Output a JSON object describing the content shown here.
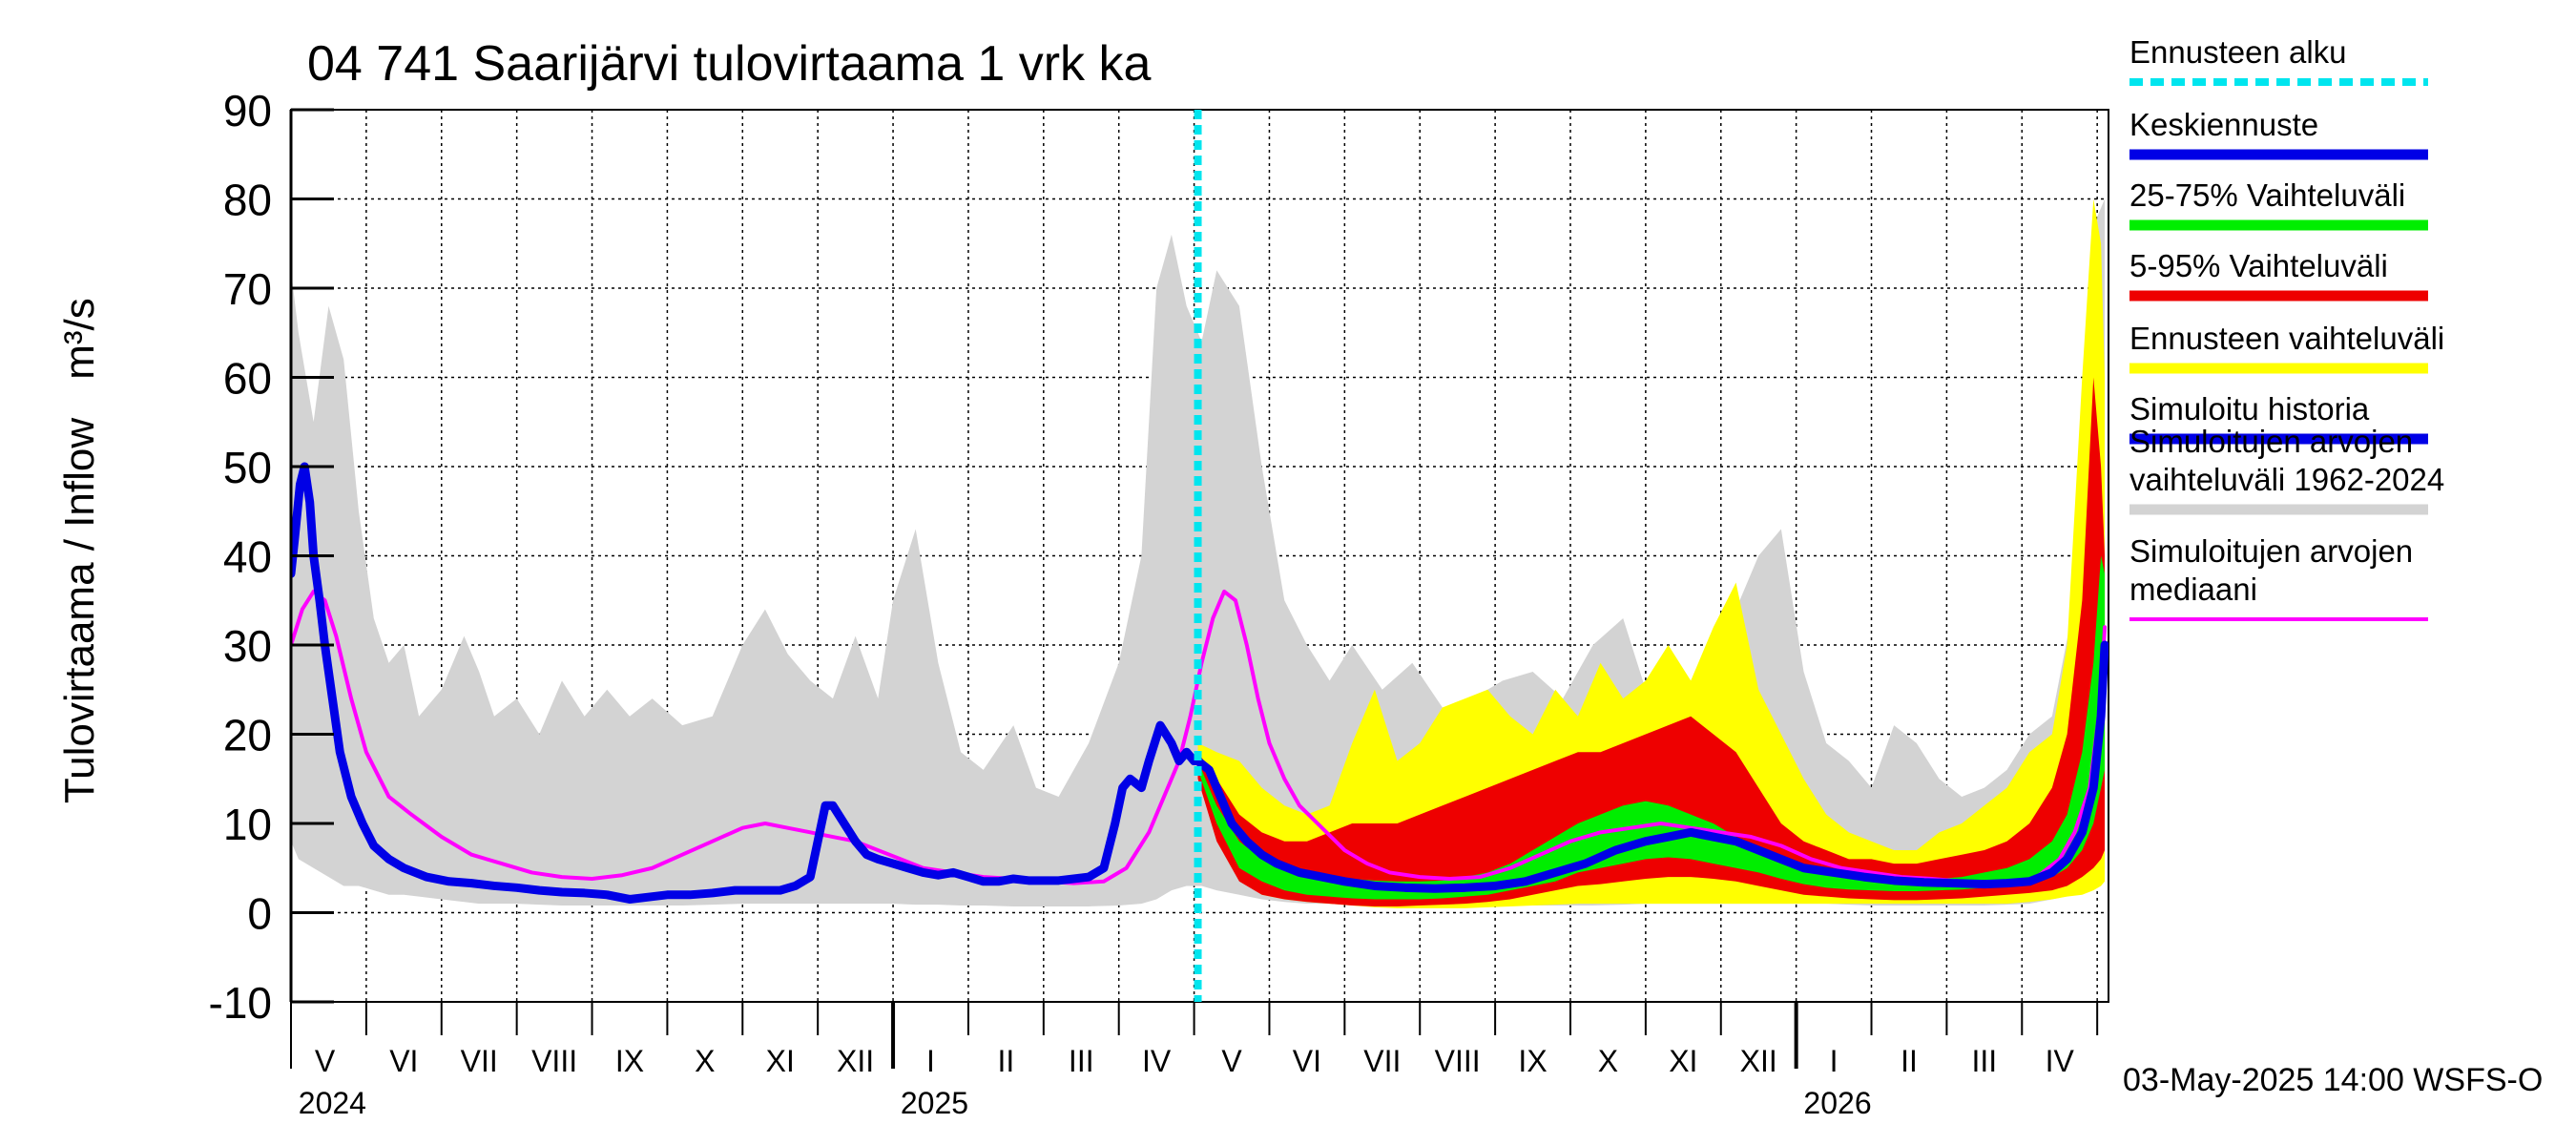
{
  "title": "04 741 Saarijärvi tulovirtaama 1 vrk ka",
  "ylabel": "Tulovirtaama / Inflow",
  "yunit": "m³/s",
  "footer": "03-May-2025 14:00 WSFS-O",
  "colors": {
    "forecast_start": "#00e5ee",
    "mean_forecast": "#0000e6",
    "iqr": "#00ee00",
    "p5_95": "#ee0000",
    "forecast_range": "#ffff00",
    "sim_history": "#0000e6",
    "hist_range": "#d3d3d3",
    "hist_median": "#ff00ff"
  },
  "legend": [
    {
      "label": "Ennusteen alku",
      "key": "forecast_start",
      "style": "dashed"
    },
    {
      "label": "Keskiennuste",
      "key": "mean_forecast",
      "style": "line"
    },
    {
      "label": "25-75% Vaihteluväli",
      "key": "iqr",
      "style": "band"
    },
    {
      "label": "5-95% Vaihteluväli",
      "key": "p5_95",
      "style": "band"
    },
    {
      "label": "Ennusteen vaihteluväli",
      "key": "forecast_range",
      "style": "band"
    },
    {
      "label": "Simuloitu historia",
      "key": "sim_history",
      "style": "line"
    },
    {
      "label": "Simuloitujen arvojen\nvaihteluväli 1962-2024",
      "key": "hist_range",
      "style": "band"
    },
    {
      "label": "Simuloitujen arvojen\nmediaani",
      "key": "hist_median",
      "style": "thin"
    }
  ],
  "chart_data": {
    "type": "area",
    "x_unit": "months since 2024-04-26",
    "xlim": [
      0,
      24.15
    ],
    "ylim": [
      -10,
      90
    ],
    "yticks": [
      -10,
      0,
      10,
      20,
      30,
      40,
      50,
      60,
      70,
      80,
      90
    ],
    "forecast_start_x": 12.05,
    "month_ticks": [
      1,
      2,
      3,
      4,
      5,
      6,
      7,
      8,
      9,
      10,
      11,
      12,
      13,
      14,
      15,
      16,
      17,
      18,
      19,
      20,
      21,
      22,
      23,
      24
    ],
    "year_ticks": [
      8,
      20
    ],
    "month_labels": [
      {
        "label": "V",
        "x": 0.45
      },
      {
        "label": "VI",
        "x": 1.5
      },
      {
        "label": "VII",
        "x": 2.5
      },
      {
        "label": "VIII",
        "x": 3.5
      },
      {
        "label": "IX",
        "x": 4.5
      },
      {
        "label": "X",
        "x": 5.5
      },
      {
        "label": "XI",
        "x": 6.5
      },
      {
        "label": "XII",
        "x": 7.5
      },
      {
        "label": "I",
        "x": 8.5
      },
      {
        "label": "II",
        "x": 9.5
      },
      {
        "label": "III",
        "x": 10.5
      },
      {
        "label": "IV",
        "x": 11.5
      },
      {
        "label": "V",
        "x": 12.5
      },
      {
        "label": "VI",
        "x": 13.5
      },
      {
        "label": "VII",
        "x": 14.5
      },
      {
        "label": "VIII",
        "x": 15.5
      },
      {
        "label": "IX",
        "x": 16.5
      },
      {
        "label": "X",
        "x": 17.5
      },
      {
        "label": "XI",
        "x": 18.5
      },
      {
        "label": "XII",
        "x": 19.5
      },
      {
        "label": "I",
        "x": 20.5
      },
      {
        "label": "II",
        "x": 21.5
      },
      {
        "label": "III",
        "x": 22.5
      },
      {
        "label": "IV",
        "x": 23.5
      }
    ],
    "year_labels": [
      {
        "label": "2024",
        "x": 0.55
      },
      {
        "label": "2025",
        "x": 8.55
      },
      {
        "label": "2026",
        "x": 20.55
      }
    ],
    "series": [
      {
        "name": "Simuloitujen arvojen vaihteluväli 1962-2024",
        "key": "hist_range",
        "kind": "band",
        "x": [
          0,
          0.1,
          0.3,
          0.5,
          0.7,
          0.9,
          1.1,
          1.3,
          1.5,
          1.7,
          2.0,
          2.3,
          2.5,
          2.7,
          3.0,
          3.3,
          3.6,
          3.9,
          4.2,
          4.5,
          4.8,
          5.2,
          5.6,
          6.0,
          6.3,
          6.6,
          6.9,
          7.2,
          7.5,
          7.8,
          8.0,
          8.3,
          8.6,
          8.9,
          9.2,
          9.6,
          9.9,
          10.2,
          10.6,
          11.0,
          11.3,
          11.5,
          11.7,
          11.9,
          12.1,
          12.3,
          12.6,
          12.9,
          13.2,
          13.5,
          13.8,
          14.1,
          14.5,
          14.9,
          15.3,
          15.7,
          16.1,
          16.5,
          16.9,
          17.3,
          17.7,
          18.0,
          18.3,
          18.6,
          18.9,
          19.2,
          19.5,
          19.8,
          20.1,
          20.4,
          20.7,
          21.0,
          21.3,
          21.6,
          21.9,
          22.2,
          22.5,
          22.8,
          23.1,
          23.4,
          23.7,
          23.9,
          24.0,
          24.1
        ],
        "upper": [
          72,
          65,
          55,
          68,
          62,
          45,
          33,
          28,
          30,
          22,
          25,
          31,
          27,
          22,
          24,
          20,
          26,
          22,
          25,
          22,
          24,
          21,
          22,
          30,
          34,
          29,
          26,
          24,
          31,
          24,
          35,
          43,
          28,
          18,
          16,
          21,
          14,
          13,
          19,
          28,
          40,
          70,
          76,
          68,
          64,
          72,
          68,
          50,
          35,
          30,
          26,
          30,
          25,
          28,
          23,
          24,
          26,
          27,
          24,
          30,
          33,
          25,
          28,
          26,
          30,
          34,
          40,
          43,
          27,
          19,
          17,
          14,
          21,
          19,
          15,
          13,
          14,
          16,
          20,
          22,
          35,
          56,
          78,
          80
        ],
        "lower": [
          8,
          6,
          5,
          4,
          3,
          3,
          2.5,
          2,
          2,
          1.8,
          1.5,
          1.2,
          1,
          1,
          1,
          0.9,
          0.8,
          0.8,
          0.8,
          0.8,
          0.8,
          0.8,
          0.9,
          1,
          1,
          1,
          1,
          1,
          1,
          1,
          1,
          0.9,
          0.9,
          0.8,
          0.8,
          0.7,
          0.7,
          0.7,
          0.7,
          0.8,
          1,
          1.5,
          2.5,
          3,
          3,
          2.5,
          2,
          1.5,
          1.2,
          1,
          1,
          0.9,
          0.8,
          0.8,
          0.8,
          0.8,
          0.8,
          0.8,
          0.8,
          0.8,
          0.9,
          1,
          1,
          1,
          1,
          1,
          1,
          1,
          1,
          1,
          0.9,
          0.8,
          0.8,
          0.8,
          0.8,
          0.8,
          0.8,
          0.9,
          1,
          1.5,
          2,
          3,
          4,
          5
        ]
      },
      {
        "name": "Ennusteen vaihteluväli",
        "key": "forecast_range",
        "kind": "band",
        "x": [
          12.05,
          12.3,
          12.6,
          12.9,
          13.2,
          13.5,
          13.8,
          14.1,
          14.4,
          14.7,
          15.0,
          15.3,
          15.6,
          15.9,
          16.2,
          16.5,
          16.8,
          17.1,
          17.4,
          17.7,
          18.0,
          18.3,
          18.6,
          18.9,
          19.2,
          19.5,
          19.8,
          20.1,
          20.4,
          20.7,
          21.0,
          21.3,
          21.6,
          21.9,
          22.2,
          22.5,
          22.8,
          23.1,
          23.4,
          23.6,
          23.8,
          23.95,
          24.05,
          24.1
        ],
        "upper": [
          19,
          18,
          17,
          14,
          12,
          11,
          12,
          19,
          25,
          17,
          19,
          23,
          24,
          25,
          22,
          20,
          25,
          22,
          28,
          24,
          26,
          30,
          26,
          32,
          37,
          25,
          20,
          15,
          11,
          9,
          8,
          7,
          7,
          9,
          10,
          12,
          14,
          18,
          20,
          30,
          60,
          80,
          75,
          60
        ],
        "lower": [
          15,
          10,
          4,
          2,
          1.5,
          1.2,
          1,
          0.8,
          0.6,
          0.5,
          0.5,
          0.5,
          0.5,
          0.6,
          0.7,
          0.8,
          0.9,
          1,
          1,
          1,
          1,
          1,
          1,
          1,
          1,
          1,
          1,
          1,
          1,
          1,
          1,
          1,
          1,
          1,
          1,
          1,
          1,
          1.2,
          1.5,
          1.8,
          2,
          2.5,
          3,
          3.5
        ]
      },
      {
        "name": "5-95% Vaihteluväli",
        "key": "p5_95",
        "kind": "band",
        "x": [
          12.05,
          12.3,
          12.6,
          12.9,
          13.2,
          13.5,
          13.8,
          14.1,
          14.4,
          14.7,
          15.0,
          15.3,
          15.6,
          15.9,
          16.2,
          16.5,
          16.8,
          17.1,
          17.4,
          17.7,
          18.0,
          18.3,
          18.6,
          18.9,
          19.2,
          19.5,
          19.8,
          20.1,
          20.4,
          20.7,
          21.0,
          21.3,
          21.6,
          21.9,
          22.2,
          22.5,
          22.8,
          23.1,
          23.4,
          23.6,
          23.8,
          23.95,
          24.05,
          24.1
        ],
        "upper": [
          18,
          15,
          11,
          9,
          8,
          8,
          9,
          10,
          10,
          10,
          11,
          12,
          13,
          14,
          15,
          16,
          17,
          18,
          18,
          19,
          20,
          21,
          22,
          20,
          18,
          14,
          10,
          8,
          7,
          6,
          6,
          5.5,
          5.5,
          6,
          6.5,
          7,
          8,
          10,
          14,
          20,
          35,
          60,
          50,
          40
        ],
        "lower": [
          15,
          8,
          3.5,
          2,
          1.5,
          1.2,
          1,
          0.8,
          0.7,
          0.7,
          0.8,
          0.9,
          1,
          1.2,
          1.5,
          2,
          2.5,
          3,
          3.2,
          3.5,
          3.8,
          4,
          4,
          3.8,
          3.5,
          3,
          2.5,
          2,
          1.8,
          1.6,
          1.5,
          1.4,
          1.4,
          1.5,
          1.6,
          1.8,
          2,
          2.2,
          2.5,
          3,
          4,
          5,
          6,
          7
        ]
      },
      {
        "name": "25-75% Vaihteluväli",
        "key": "iqr",
        "kind": "band",
        "x": [
          12.05,
          12.3,
          12.6,
          12.9,
          13.2,
          13.5,
          13.8,
          14.1,
          14.4,
          14.7,
          15.0,
          15.3,
          15.6,
          15.9,
          16.2,
          16.5,
          16.8,
          17.1,
          17.4,
          17.7,
          18.0,
          18.3,
          18.6,
          18.9,
          19.2,
          19.5,
          19.8,
          20.1,
          20.4,
          20.7,
          21.0,
          21.3,
          21.6,
          21.9,
          22.2,
          22.5,
          22.8,
          23.1,
          23.4,
          23.6,
          23.8,
          23.95,
          24.05,
          24.1
        ],
        "upper": [
          17,
          12,
          8,
          6,
          5,
          4.5,
          4,
          3.8,
          3.6,
          3.5,
          3.5,
          3.6,
          4,
          4.5,
          5.5,
          7,
          8.5,
          10,
          11,
          12,
          12.5,
          12,
          11,
          10,
          8.5,
          7,
          6,
          5,
          4.5,
          4.2,
          4,
          3.8,
          3.7,
          3.8,
          4,
          4.5,
          5,
          6,
          8,
          11,
          18,
          28,
          40,
          38
        ],
        "lower": [
          16,
          10,
          5,
          3.5,
          2.5,
          2,
          1.8,
          1.6,
          1.5,
          1.5,
          1.5,
          1.6,
          1.8,
          2,
          2.5,
          3,
          3.5,
          4.5,
          5,
          5.5,
          6,
          6.2,
          6,
          5.5,
          5,
          4.5,
          3.8,
          3.2,
          2.8,
          2.6,
          2.5,
          2.4,
          2.4,
          2.5,
          2.6,
          2.8,
          3,
          3.5,
          4,
          5,
          7,
          10,
          14,
          16
        ]
      },
      {
        "name": "Simuloitujen arvojen mediaani",
        "key": "hist_median",
        "kind": "line",
        "x": [
          0,
          0.15,
          0.3,
          0.45,
          0.6,
          0.8,
          1.0,
          1.3,
          1.6,
          2.0,
          2.4,
          2.8,
          3.2,
          3.6,
          4.0,
          4.4,
          4.8,
          5.2,
          5.6,
          6.0,
          6.3,
          6.6,
          6.9,
          7.2,
          7.5,
          7.8,
          8.1,
          8.4,
          8.8,
          9.2,
          9.6,
          10.0,
          10.4,
          10.8,
          11.1,
          11.4,
          11.6,
          11.8,
          11.95,
          12.1,
          12.25,
          12.4,
          12.55,
          12.7,
          12.85,
          13.0,
          13.2,
          13.4,
          13.7,
          14.0,
          14.3,
          14.6,
          15.0,
          15.4,
          15.8,
          16.2,
          16.6,
          17.0,
          17.4,
          17.8,
          18.2,
          18.6,
          19.0,
          19.4,
          19.8,
          20.2,
          20.6,
          21.0,
          21.4,
          21.8,
          22.2,
          22.6,
          22.9,
          23.2,
          23.5,
          23.7,
          23.9,
          24.05,
          24.1
        ],
        "values": [
          30,
          34,
          36,
          35,
          31,
          24,
          18,
          13,
          11,
          8.5,
          6.5,
          5.5,
          4.5,
          4,
          3.8,
          4.2,
          5,
          6.5,
          8,
          9.5,
          10,
          9.5,
          9,
          8.5,
          8,
          7,
          6,
          5,
          4.5,
          4,
          3.8,
          3.5,
          3.3,
          3.5,
          5,
          9,
          13,
          17,
          22,
          28,
          33,
          36,
          35,
          30,
          24,
          19,
          15,
          12,
          9.5,
          7,
          5.5,
          4.5,
          4,
          3.8,
          4,
          5,
          6.5,
          8,
          9,
          9.5,
          10,
          9.5,
          9,
          8.5,
          7.5,
          6,
          5,
          4.5,
          4,
          3.8,
          3.5,
          3.3,
          3.3,
          4,
          6,
          9,
          14,
          24,
          32
        ]
      },
      {
        "name": "Simuloitu historia",
        "key": "sim_history",
        "kind": "line",
        "x": [
          0,
          0.05,
          0.12,
          0.18,
          0.25,
          0.3,
          0.38,
          0.45,
          0.55,
          0.65,
          0.8,
          0.95,
          1.1,
          1.3,
          1.5,
          1.8,
          2.1,
          2.4,
          2.7,
          3.0,
          3.3,
          3.6,
          3.9,
          4.2,
          4.5,
          4.8,
          5.0,
          5.3,
          5.6,
          5.9,
          6.2,
          6.5,
          6.7,
          6.9,
          7.0,
          7.1,
          7.2,
          7.35,
          7.5,
          7.65,
          7.8,
          8.0,
          8.2,
          8.4,
          8.6,
          8.8,
          9.0,
          9.2,
          9.4,
          9.6,
          9.8,
          10.0,
          10.2,
          10.4,
          10.6,
          10.8,
          10.95,
          11.05,
          11.15,
          11.3,
          11.4,
          11.55,
          11.7,
          11.8,
          11.9,
          12.0,
          12.05
        ],
        "values": [
          38,
          42,
          48,
          50,
          46,
          40,
          35,
          30,
          24,
          18,
          13,
          10,
          7.5,
          6,
          5,
          4,
          3.5,
          3.3,
          3,
          2.8,
          2.5,
          2.3,
          2.2,
          2,
          1.5,
          1.8,
          2,
          2,
          2.2,
          2.5,
          2.5,
          2.5,
          3,
          4,
          8,
          12,
          12,
          10,
          8,
          6.5,
          6,
          5.5,
          5,
          4.5,
          4.2,
          4.5,
          4,
          3.5,
          3.5,
          3.8,
          3.6,
          3.6,
          3.6,
          3.8,
          4,
          5,
          10,
          14,
          15,
          14,
          17,
          21,
          19,
          17,
          18,
          17,
          17
        ]
      },
      {
        "name": "Keskiennuste",
        "key": "mean_forecast",
        "kind": "line",
        "x": [
          12.05,
          12.2,
          12.35,
          12.5,
          12.7,
          12.9,
          13.1,
          13.4,
          13.7,
          14.0,
          14.4,
          14.8,
          15.2,
          15.6,
          16.0,
          16.4,
          16.8,
          17.2,
          17.6,
          18.0,
          18.3,
          18.6,
          18.9,
          19.2,
          19.5,
          19.8,
          20.1,
          20.5,
          20.9,
          21.3,
          21.7,
          22.1,
          22.5,
          22.8,
          23.1,
          23.4,
          23.6,
          23.8,
          23.95,
          24.05,
          24.1
        ],
        "values": [
          17,
          16,
          13,
          10,
          8,
          6.5,
          5.5,
          4.5,
          4,
          3.5,
          3,
          2.8,
          2.7,
          2.8,
          3,
          3.5,
          4.5,
          5.5,
          7,
          8,
          8.5,
          9,
          8.5,
          8,
          7,
          6,
          5,
          4.5,
          4,
          3.6,
          3.4,
          3.3,
          3.2,
          3.3,
          3.5,
          4.5,
          6,
          9,
          14,
          22,
          30
        ]
      }
    ]
  }
}
